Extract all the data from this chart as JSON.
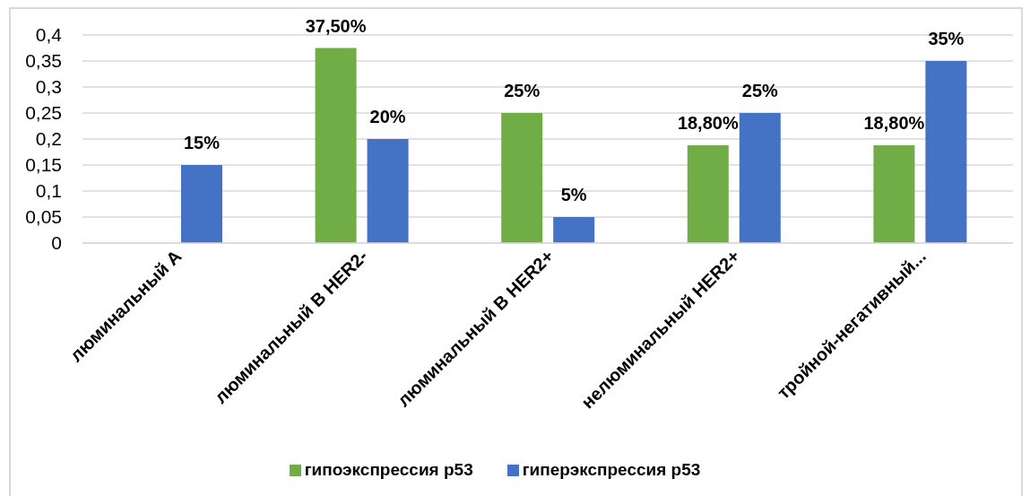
{
  "chart_data": {
    "type": "bar",
    "categories": [
      "люминальный А",
      "люминальный В HER2-",
      "люминальный В HER2+",
      "нелюминальный HER2+",
      "тройной-негативный..."
    ],
    "series": [
      {
        "name": "гипоэкспрессия p53",
        "color": "#70ad47",
        "values": [
          null,
          0.375,
          0.25,
          0.188,
          0.188
        ],
        "value_labels": [
          null,
          "37,50%",
          "25%",
          "18,80%",
          "18,80%"
        ]
      },
      {
        "name": "гиперэкспрессия p53",
        "color": "#4472c4",
        "values": [
          0.15,
          0.2,
          0.05,
          0.25,
          0.35
        ],
        "value_labels": [
          "15%",
          "20%",
          "5%",
          "25%",
          "35%"
        ]
      }
    ],
    "ylim": [
      0,
      0.4
    ],
    "yticks": [
      0,
      {
        "value": 0.05,
        "label": "0,05"
      },
      {
        "value": 0.1,
        "label": "0,1"
      },
      {
        "value": 0.15,
        "label": "0,15"
      },
      {
        "value": 0.2,
        "label": "0,2"
      },
      {
        "value": 0.25,
        "label": "0,25"
      },
      {
        "value": 0.3,
        "label": "0,3"
      },
      {
        "value": 0.35,
        "label": "0,35"
      },
      {
        "value": 0.4,
        "label": "0,4"
      }
    ],
    "grid": "y",
    "legend": "bottom"
  }
}
